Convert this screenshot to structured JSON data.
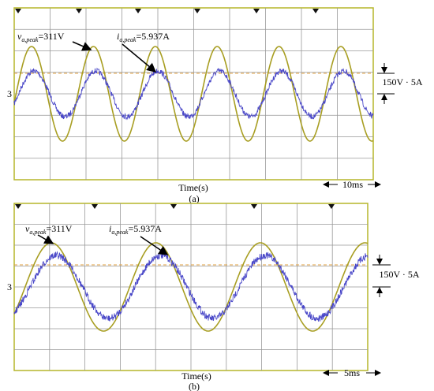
{
  "panels": [
    {
      "voltage_label": {
        "symbol": "v",
        "subscript": "a,peak",
        "value": "=311V"
      },
      "current_label": {
        "symbol": "i",
        "subscript": "a,peak",
        "value": "=5.937A"
      },
      "x_label": "Time(s)",
      "time_scale": "10ms",
      "amplitude_scale": "150V · 5A",
      "channel_marker": "3",
      "caption": "(a)"
    },
    {
      "voltage_label": {
        "symbol": "v",
        "subscript": "a,peak",
        "value": "=311V"
      },
      "current_label": {
        "symbol": "i",
        "subscript": "a,peak",
        "value": "=5.937A"
      },
      "x_label": "Time(s)",
      "time_scale": "5ms",
      "amplitude_scale": "150V · 5A",
      "channel_marker": "3",
      "caption": "(b)"
    }
  ]
}
